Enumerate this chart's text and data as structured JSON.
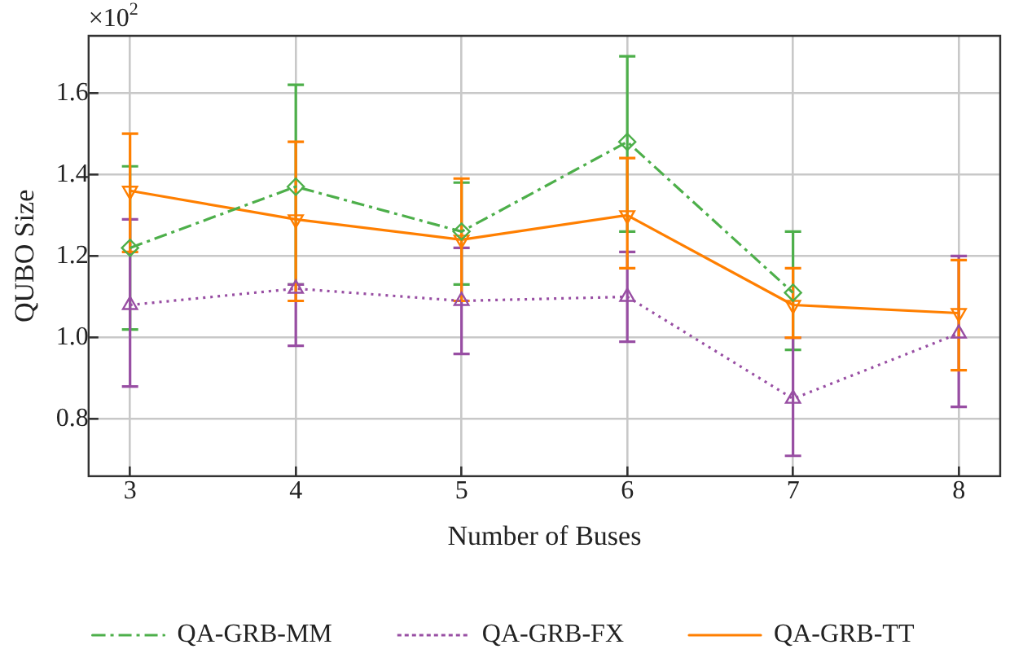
{
  "chart_data": {
    "type": "line",
    "xlabel": "Number of Buses",
    "ylabel": "QUBO Size",
    "x": [
      3,
      4,
      5,
      6,
      7,
      8
    ],
    "xlim": [
      2.75,
      8.25
    ],
    "xticks": [
      3,
      4,
      5,
      6,
      7,
      8
    ],
    "ylim": [
      0.66,
      1.74
    ],
    "yticks": [
      0.8,
      {
        "value": 1.0,
        "label": "1.0"
      },
      1.2,
      1.4,
      1.6
    ],
    "grid": true,
    "legend": "bottom",
    "annotations": [
      "×10$^{2}$"
    ],
    "series": [
      {
        "name": "QA-GRB-MM",
        "color": "#4daf4a",
        "marker": "diamond",
        "line_style": "dashdot",
        "values": [
          1.22,
          1.37,
          1.26,
          1.48,
          1.11,
          null
        ],
        "errors": [
          [
            1.02,
            1.42
          ],
          [
            1.13,
            1.62
          ],
          [
            1.13,
            1.38
          ],
          [
            1.26,
            1.69
          ],
          [
            0.97,
            1.26
          ],
          null
        ]
      },
      {
        "name": "QA-GRB-FX",
        "color": "#984ea3",
        "marker": "triangle",
        "line_style": "dotted",
        "values": [
          1.08,
          1.12,
          1.09,
          1.1,
          0.85,
          1.01
        ],
        "errors": [
          [
            0.88,
            1.29
          ],
          [
            0.98,
            1.13
          ],
          [
            0.96,
            1.22
          ],
          [
            0.99,
            1.21
          ],
          [
            0.71,
            1.0
          ],
          [
            0.83,
            1.2
          ]
        ]
      },
      {
        "name": "QA-GRB-TT",
        "color": "#ff7f00",
        "marker": "triangle-down",
        "line_style": "solid",
        "values": [
          1.36,
          1.29,
          1.24,
          1.3,
          1.08,
          1.06
        ],
        "errors": [
          [
            1.21,
            1.5
          ],
          [
            1.09,
            1.48
          ],
          [
            1.09,
            1.39
          ],
          [
            1.17,
            1.44
          ],
          [
            1.0,
            1.17
          ],
          [
            0.92,
            1.19
          ]
        ]
      }
    ]
  }
}
